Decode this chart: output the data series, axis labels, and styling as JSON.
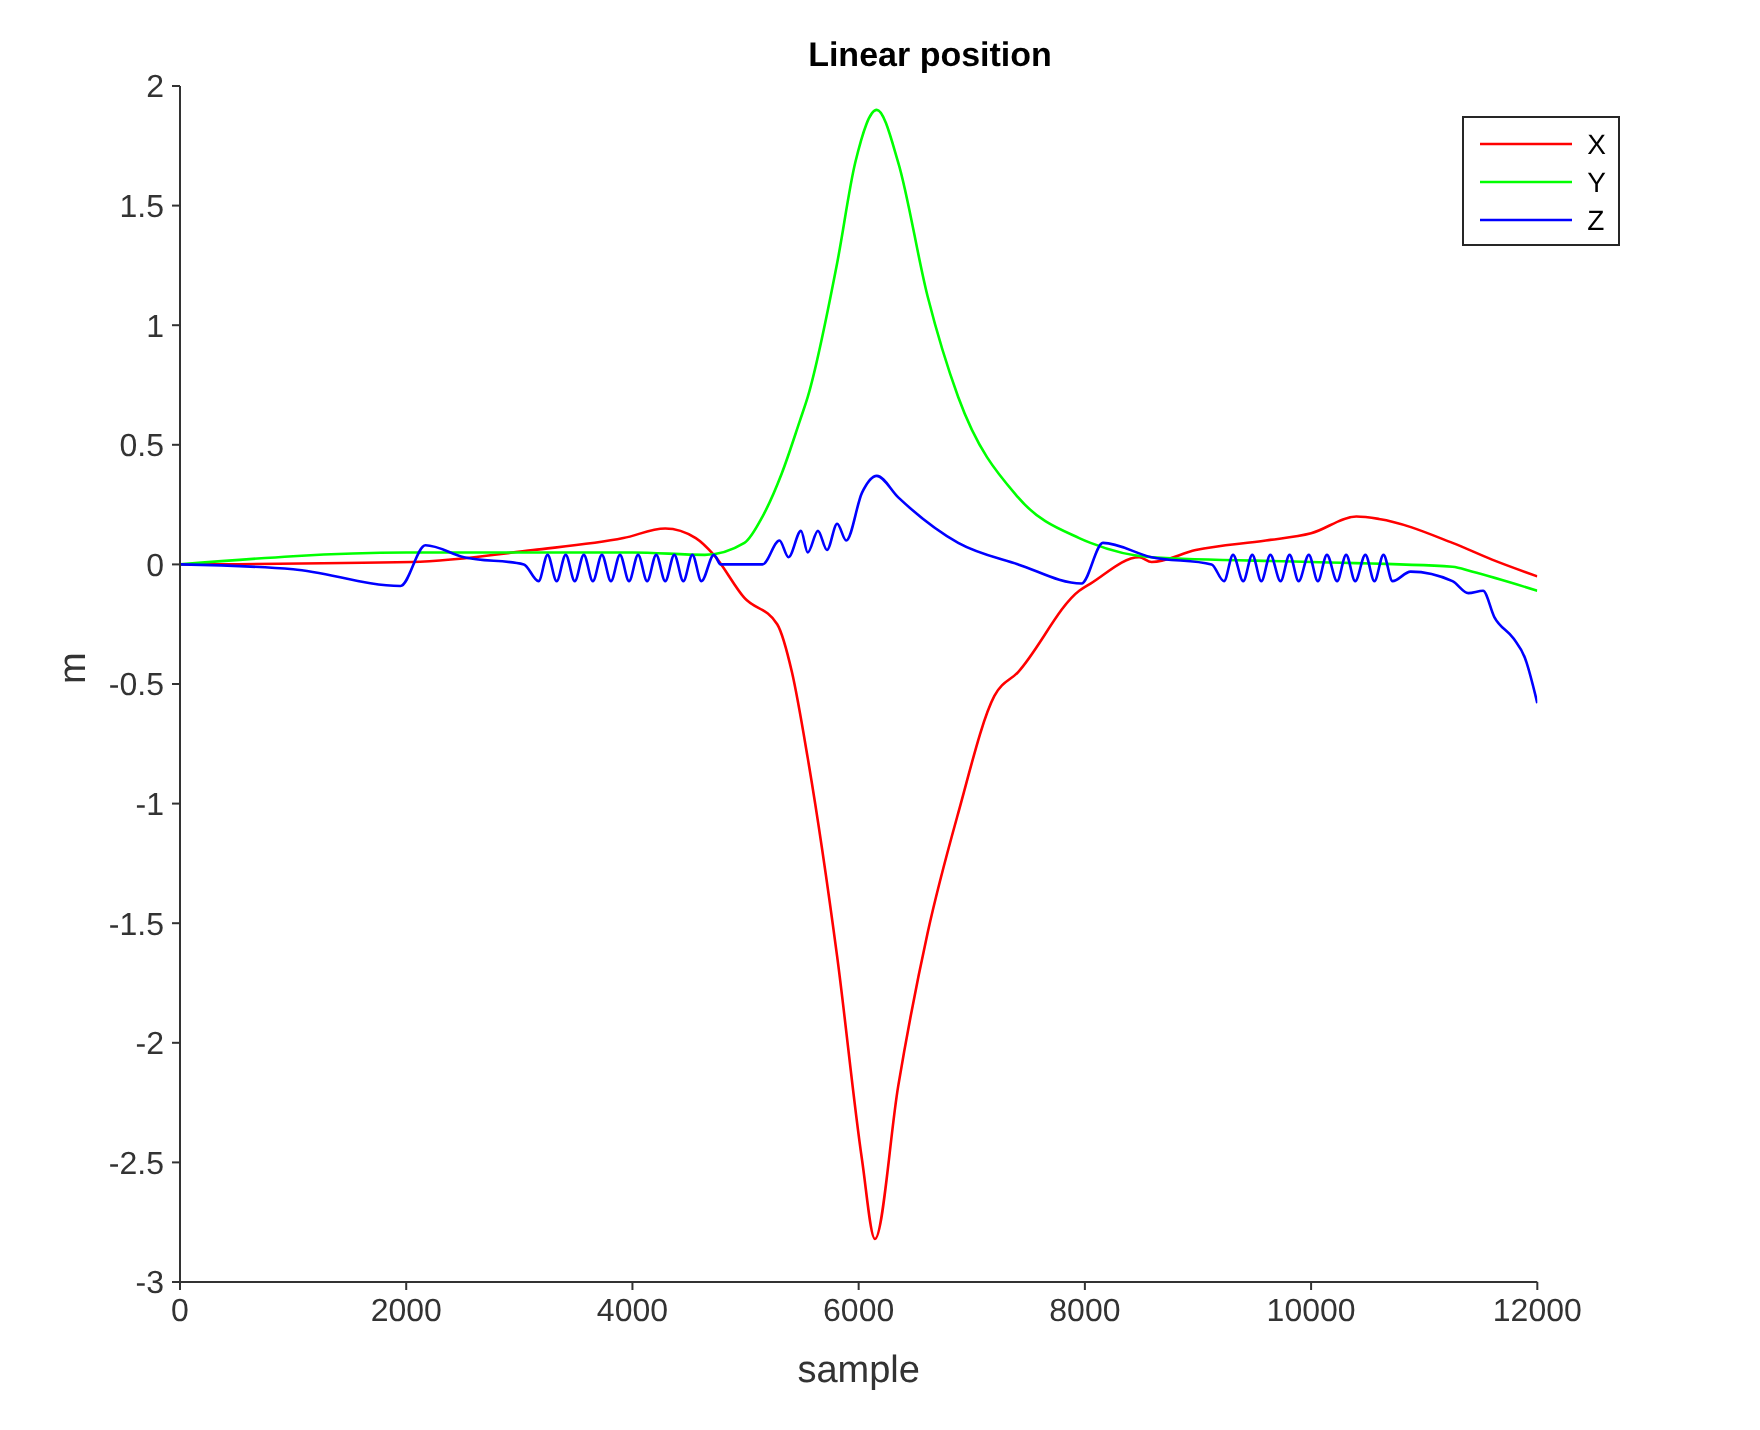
{
  "chart_data": {
    "type": "line",
    "title": "Linear position",
    "xlabel": "sample",
    "ylabel": "m",
    "xlim": [
      0,
      12000
    ],
    "xticks": [
      0,
      2000,
      4000,
      6000,
      8000,
      10000,
      12000
    ],
    "ylim": [
      -3,
      2
    ],
    "yticks": [
      -3,
      -2.5,
      -2,
      -1.5,
      -1,
      -0.5,
      0,
      0.5,
      1,
      1.5,
      2
    ],
    "grid": false,
    "legend": "top right",
    "marker": "none",
    "line_style": "solid",
    "series": [
      {
        "name": "X",
        "color": "#ff0000",
        "x": [
          0,
          2050,
          3120,
          3920,
          4290,
          4560,
          4720,
          4990,
          5280,
          5410,
          5550,
          5810,
          6030,
          6144,
          6350,
          6610,
          6880,
          7200,
          7410,
          7950,
          8050,
          8480,
          8590,
          8980,
          9600,
          10000,
          10400,
          10600,
          11250,
          11600,
          12000
        ],
        "values": [
          0,
          0.01,
          0.06,
          0.11,
          0.15,
          0.11,
          0.04,
          -0.14,
          -0.25,
          -0.45,
          -0.81,
          -1.64,
          -2.49,
          -2.82,
          -2.18,
          -1.54,
          -1.04,
          -0.55,
          -0.45,
          -0.11,
          -0.08,
          0.03,
          0.01,
          0.06,
          0.1,
          0.13,
          0.2,
          0.19,
          0.09,
          0.02,
          -0.05
        ]
      },
      {
        "name": "Y",
        "color": "#00ff00",
        "x": [
          0,
          2000,
          4000,
          4640,
          4990,
          5150,
          5320,
          5480,
          5550,
          5810,
          5970,
          6160,
          6350,
          6610,
          6880,
          7410,
          7950,
          8050,
          8590,
          10000,
          11250,
          11420,
          12000
        ],
        "values": [
          0,
          0.05,
          0.05,
          0.04,
          0.09,
          0.2,
          0.38,
          0.6,
          0.7,
          1.26,
          1.68,
          1.9,
          1.68,
          1.12,
          0.7,
          0.28,
          0.11,
          0.09,
          0.03,
          0.01,
          -0.01,
          -0.03,
          -0.11
        ]
      },
      {
        "name": "Z",
        "color": "#0000ff",
        "x": [
          0,
          1000,
          1950,
          2170,
          2510,
          3040,
          3170,
          3250,
          3330,
          3410,
          3490,
          3570,
          3650,
          3730,
          3810,
          3890,
          3970,
          4050,
          4130,
          4210,
          4290,
          4370,
          4450,
          4530,
          4610,
          4720,
          4780,
          5150,
          5300,
          5380,
          5490,
          5550,
          5640,
          5720,
          5810,
          5890,
          6030,
          6160,
          6350,
          6880,
          7410,
          7970,
          8160,
          8590,
          9120,
          9230,
          9310,
          9400,
          9480,
          9560,
          9640,
          9730,
          9810,
          9890,
          9980,
          10060,
          10140,
          10230,
          10310,
          10390,
          10480,
          10560,
          10640,
          10720,
          10880,
          11250,
          11390,
          11520,
          11620,
          11790,
          11890,
          12000
        ],
        "values": [
          0,
          -0.02,
          -0.09,
          0.08,
          0.03,
          0,
          -0.07,
          0.04,
          -0.07,
          0.04,
          -0.07,
          0.04,
          -0.07,
          0.04,
          -0.07,
          0.04,
          -0.07,
          0.04,
          -0.07,
          0.04,
          -0.07,
          0.04,
          -0.07,
          0.04,
          -0.07,
          0.04,
          0,
          0,
          0.1,
          0.03,
          0.14,
          0.05,
          0.14,
          0.06,
          0.17,
          0.1,
          0.3,
          0.37,
          0.28,
          0.09,
          0,
          -0.08,
          0.09,
          0.03,
          0,
          -0.07,
          0.04,
          -0.07,
          0.04,
          -0.07,
          0.04,
          -0.07,
          0.04,
          -0.07,
          0.04,
          -0.07,
          0.04,
          -0.07,
          0.04,
          -0.07,
          0.04,
          -0.07,
          0.04,
          -0.07,
          -0.03,
          -0.07,
          -0.12,
          -0.11,
          -0.22,
          -0.31,
          -0.39,
          -0.58
        ]
      }
    ]
  }
}
